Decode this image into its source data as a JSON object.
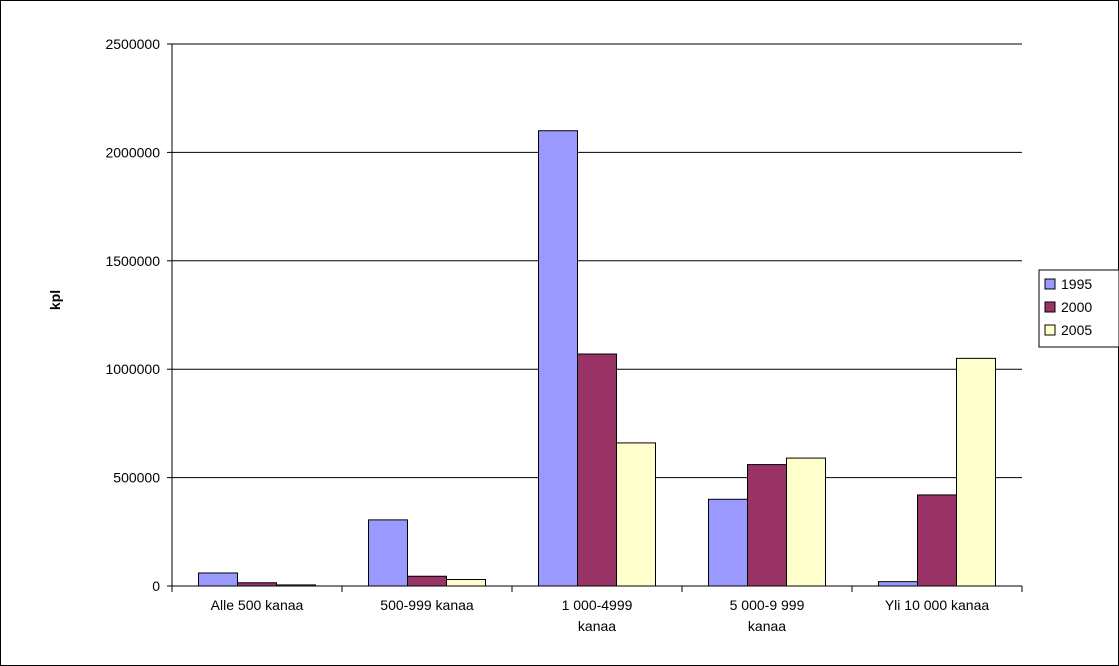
{
  "chart_data": {
    "type": "bar",
    "title": "",
    "xlabel": "",
    "ylabel": "kpl",
    "ylim": [
      0,
      2500000
    ],
    "yticks": [
      "0",
      "500000",
      "1000000",
      "1500000",
      "2000000",
      "2500000"
    ],
    "categories": [
      [
        "Alle 500 kanaa"
      ],
      [
        "500-999 kanaa"
      ],
      [
        "1 000-4999",
        "kanaa"
      ],
      [
        "5 000-9 999",
        "kanaa"
      ],
      [
        "Yli  10 000 kanaa"
      ]
    ],
    "series": [
      {
        "name": "1995",
        "color": "#9999ff",
        "values": [
          60000,
          305000,
          2100000,
          400000,
          20000
        ]
      },
      {
        "name": "2000",
        "color": "#993366",
        "values": [
          15000,
          45000,
          1070000,
          560000,
          420000
        ]
      },
      {
        "name": "2005",
        "color": "#ffffcc",
        "values": [
          5000,
          30000,
          660000,
          590000,
          1050000
        ]
      }
    ],
    "grid": true,
    "legend_position": "right"
  }
}
